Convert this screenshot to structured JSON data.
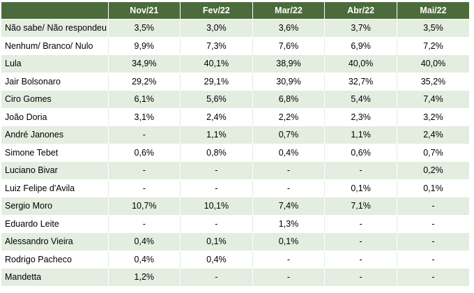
{
  "table": {
    "columns": [
      "",
      "Nov/21",
      "Fev/22",
      "Mar/22",
      "Abr/22",
      "Mai/22"
    ],
    "rows": [
      {
        "label": "Não sabe/ Não respondeu",
        "values": [
          "3,5%",
          "3,0%",
          "3,6%",
          "3,7%",
          "3,5%"
        ]
      },
      {
        "label": "Nenhum/ Branco/ Nulo",
        "values": [
          "9,9%",
          "7,3%",
          "7,6%",
          "6,9%",
          "7,2%"
        ]
      },
      {
        "label": "Lula",
        "values": [
          "34,9%",
          "40,1%",
          "38,9%",
          "40,0%",
          "40,0%"
        ]
      },
      {
        "label": "Jair Bolsonaro",
        "values": [
          "29,2%",
          "29,1%",
          "30,9%",
          "32,7%",
          "35,2%"
        ]
      },
      {
        "label": "Ciro Gomes",
        "values": [
          "6,1%",
          "5,6%",
          "6,8%",
          "5,4%",
          "7,4%"
        ]
      },
      {
        "label": "João Doria",
        "values": [
          "3,1%",
          "2,4%",
          "2,2%",
          "2,3%",
          "3,2%"
        ]
      },
      {
        "label": "André Janones",
        "values": [
          "-",
          "1,1%",
          "0,7%",
          "1,1%",
          "2,4%"
        ]
      },
      {
        "label": "Simone Tebet",
        "values": [
          "0,6%",
          "0,8%",
          "0,4%",
          "0,6%",
          "0,7%"
        ]
      },
      {
        "label": "Luciano Bivar",
        "values": [
          "-",
          "-",
          "-",
          "-",
          "0,2%"
        ]
      },
      {
        "label": "Luiz Felipe d'Avila",
        "values": [
          "-",
          "-",
          "-",
          "0,1%",
          "0,1%"
        ]
      },
      {
        "label": "Sergio Moro",
        "values": [
          "10,7%",
          "10,1%",
          "7,4%",
          "7,1%",
          "-"
        ]
      },
      {
        "label": "Eduardo Leite",
        "values": [
          "-",
          "-",
          "1,3%",
          "-",
          "-"
        ]
      },
      {
        "label": "Alessandro Vieira",
        "values": [
          "0,4%",
          "0,1%",
          "0,1%",
          "-",
          "-"
        ]
      },
      {
        "label": "Rodrigo Pacheco",
        "values": [
          "0,4%",
          "0,4%",
          "-",
          "-",
          "-"
        ]
      },
      {
        "label": "Mandetta",
        "values": [
          "1,2%",
          "-",
          "-",
          "-",
          "-"
        ]
      }
    ]
  },
  "colors": {
    "header_bg": "#4b6b3c",
    "header_text": "#ffffff",
    "stripe_bg": "#e3ede0"
  }
}
